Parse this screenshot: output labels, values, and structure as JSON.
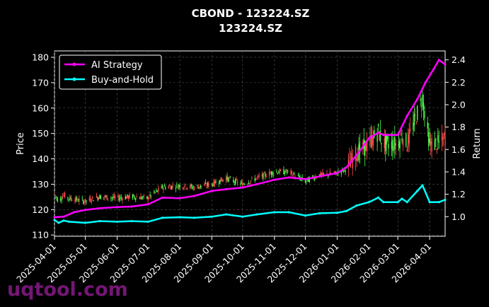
{
  "chart_data": {
    "type": "line",
    "title": "CBOND - 123224.SZ",
    "subtitle": "123224.SZ",
    "ylabel_left": "Price",
    "ylabel_right": "Return",
    "x_ticks": [
      "2025-04-01",
      "2025-05-01",
      "2025-06-01",
      "2025-07-01",
      "2025-08-01",
      "2025-09-01",
      "2025-10-01",
      "2025-11-01",
      "2025-12-01",
      "2026-01-01",
      "2026-02-01",
      "2026-03-01",
      "2026-04-01"
    ],
    "y_left_ticks": [
      110,
      120,
      130,
      140,
      150,
      160,
      170,
      180
    ],
    "y_right_ticks": [
      1.0,
      1.2,
      1.4,
      1.6,
      1.8,
      2.0,
      2.2,
      2.4
    ],
    "ylim_left": [
      109.5,
      182.5
    ],
    "ylim_right": [
      0.825,
      2.48
    ],
    "xlim": [
      "2025-04-01",
      "2026-04-16"
    ],
    "grid": true,
    "legend_position": "upper-left",
    "candlestick_colors": {
      "up": "#ff4d4d",
      "down": "#4dff4d"
    },
    "series": [
      {
        "name": "AI Strategy",
        "axis": "right",
        "color": "#ff00ff",
        "points": [
          [
            "2025-04-01",
            0.995
          ],
          [
            "2025-04-10",
            1.0
          ],
          [
            "2025-04-20",
            1.04
          ],
          [
            "2025-05-01",
            1.06
          ],
          [
            "2025-05-15",
            1.075
          ],
          [
            "2025-06-01",
            1.085
          ],
          [
            "2025-06-15",
            1.09
          ],
          [
            "2025-07-01",
            1.11
          ],
          [
            "2025-07-15",
            1.17
          ],
          [
            "2025-08-01",
            1.165
          ],
          [
            "2025-08-15",
            1.185
          ],
          [
            "2025-09-01",
            1.23
          ],
          [
            "2025-09-15",
            1.245
          ],
          [
            "2025-10-01",
            1.26
          ],
          [
            "2025-10-15",
            1.29
          ],
          [
            "2025-11-01",
            1.33
          ],
          [
            "2025-11-15",
            1.35
          ],
          [
            "2025-12-01",
            1.335
          ],
          [
            "2025-12-15",
            1.36
          ],
          [
            "2026-01-01",
            1.39
          ],
          [
            "2026-01-10",
            1.44
          ],
          [
            "2026-01-20",
            1.55
          ],
          [
            "2026-02-01",
            1.7
          ],
          [
            "2026-02-10",
            1.75
          ],
          [
            "2026-02-15",
            1.73
          ],
          [
            "2026-03-01",
            1.73
          ],
          [
            "2026-03-10",
            1.9
          ],
          [
            "2026-03-20",
            2.05
          ],
          [
            "2026-03-28",
            2.2
          ],
          [
            "2026-04-05",
            2.32
          ],
          [
            "2026-04-10",
            2.4
          ],
          [
            "2026-04-16",
            2.36
          ]
        ]
      },
      {
        "name": "Buy-and-Hold",
        "axis": "right",
        "color": "#00ffff",
        "points": [
          [
            "2025-04-01",
            0.97
          ],
          [
            "2025-04-05",
            0.945
          ],
          [
            "2025-04-10",
            0.965
          ],
          [
            "2025-04-15",
            0.955
          ],
          [
            "2025-05-01",
            0.945
          ],
          [
            "2025-05-15",
            0.96
          ],
          [
            "2025-06-01",
            0.955
          ],
          [
            "2025-06-15",
            0.96
          ],
          [
            "2025-07-01",
            0.955
          ],
          [
            "2025-07-15",
            0.99
          ],
          [
            "2025-08-01",
            0.995
          ],
          [
            "2025-08-15",
            0.99
          ],
          [
            "2025-09-01",
            1.0
          ],
          [
            "2025-09-15",
            1.02
          ],
          [
            "2025-10-01",
            1.0
          ],
          [
            "2025-10-15",
            1.02
          ],
          [
            "2025-11-01",
            1.04
          ],
          [
            "2025-11-15",
            1.04
          ],
          [
            "2025-12-01",
            1.01
          ],
          [
            "2025-12-15",
            1.03
          ],
          [
            "2026-01-01",
            1.035
          ],
          [
            "2026-01-10",
            1.05
          ],
          [
            "2026-01-20",
            1.1
          ],
          [
            "2026-02-01",
            1.13
          ],
          [
            "2026-02-10",
            1.17
          ],
          [
            "2026-02-15",
            1.13
          ],
          [
            "2026-03-01",
            1.13
          ],
          [
            "2026-03-05",
            1.16
          ],
          [
            "2026-03-10",
            1.13
          ],
          [
            "2026-03-20",
            1.23
          ],
          [
            "2026-03-25",
            1.28
          ],
          [
            "2026-04-01",
            1.13
          ],
          [
            "2026-04-10",
            1.13
          ],
          [
            "2026-04-16",
            1.15
          ]
        ]
      }
    ]
  },
  "watermark": "uqtool.com"
}
